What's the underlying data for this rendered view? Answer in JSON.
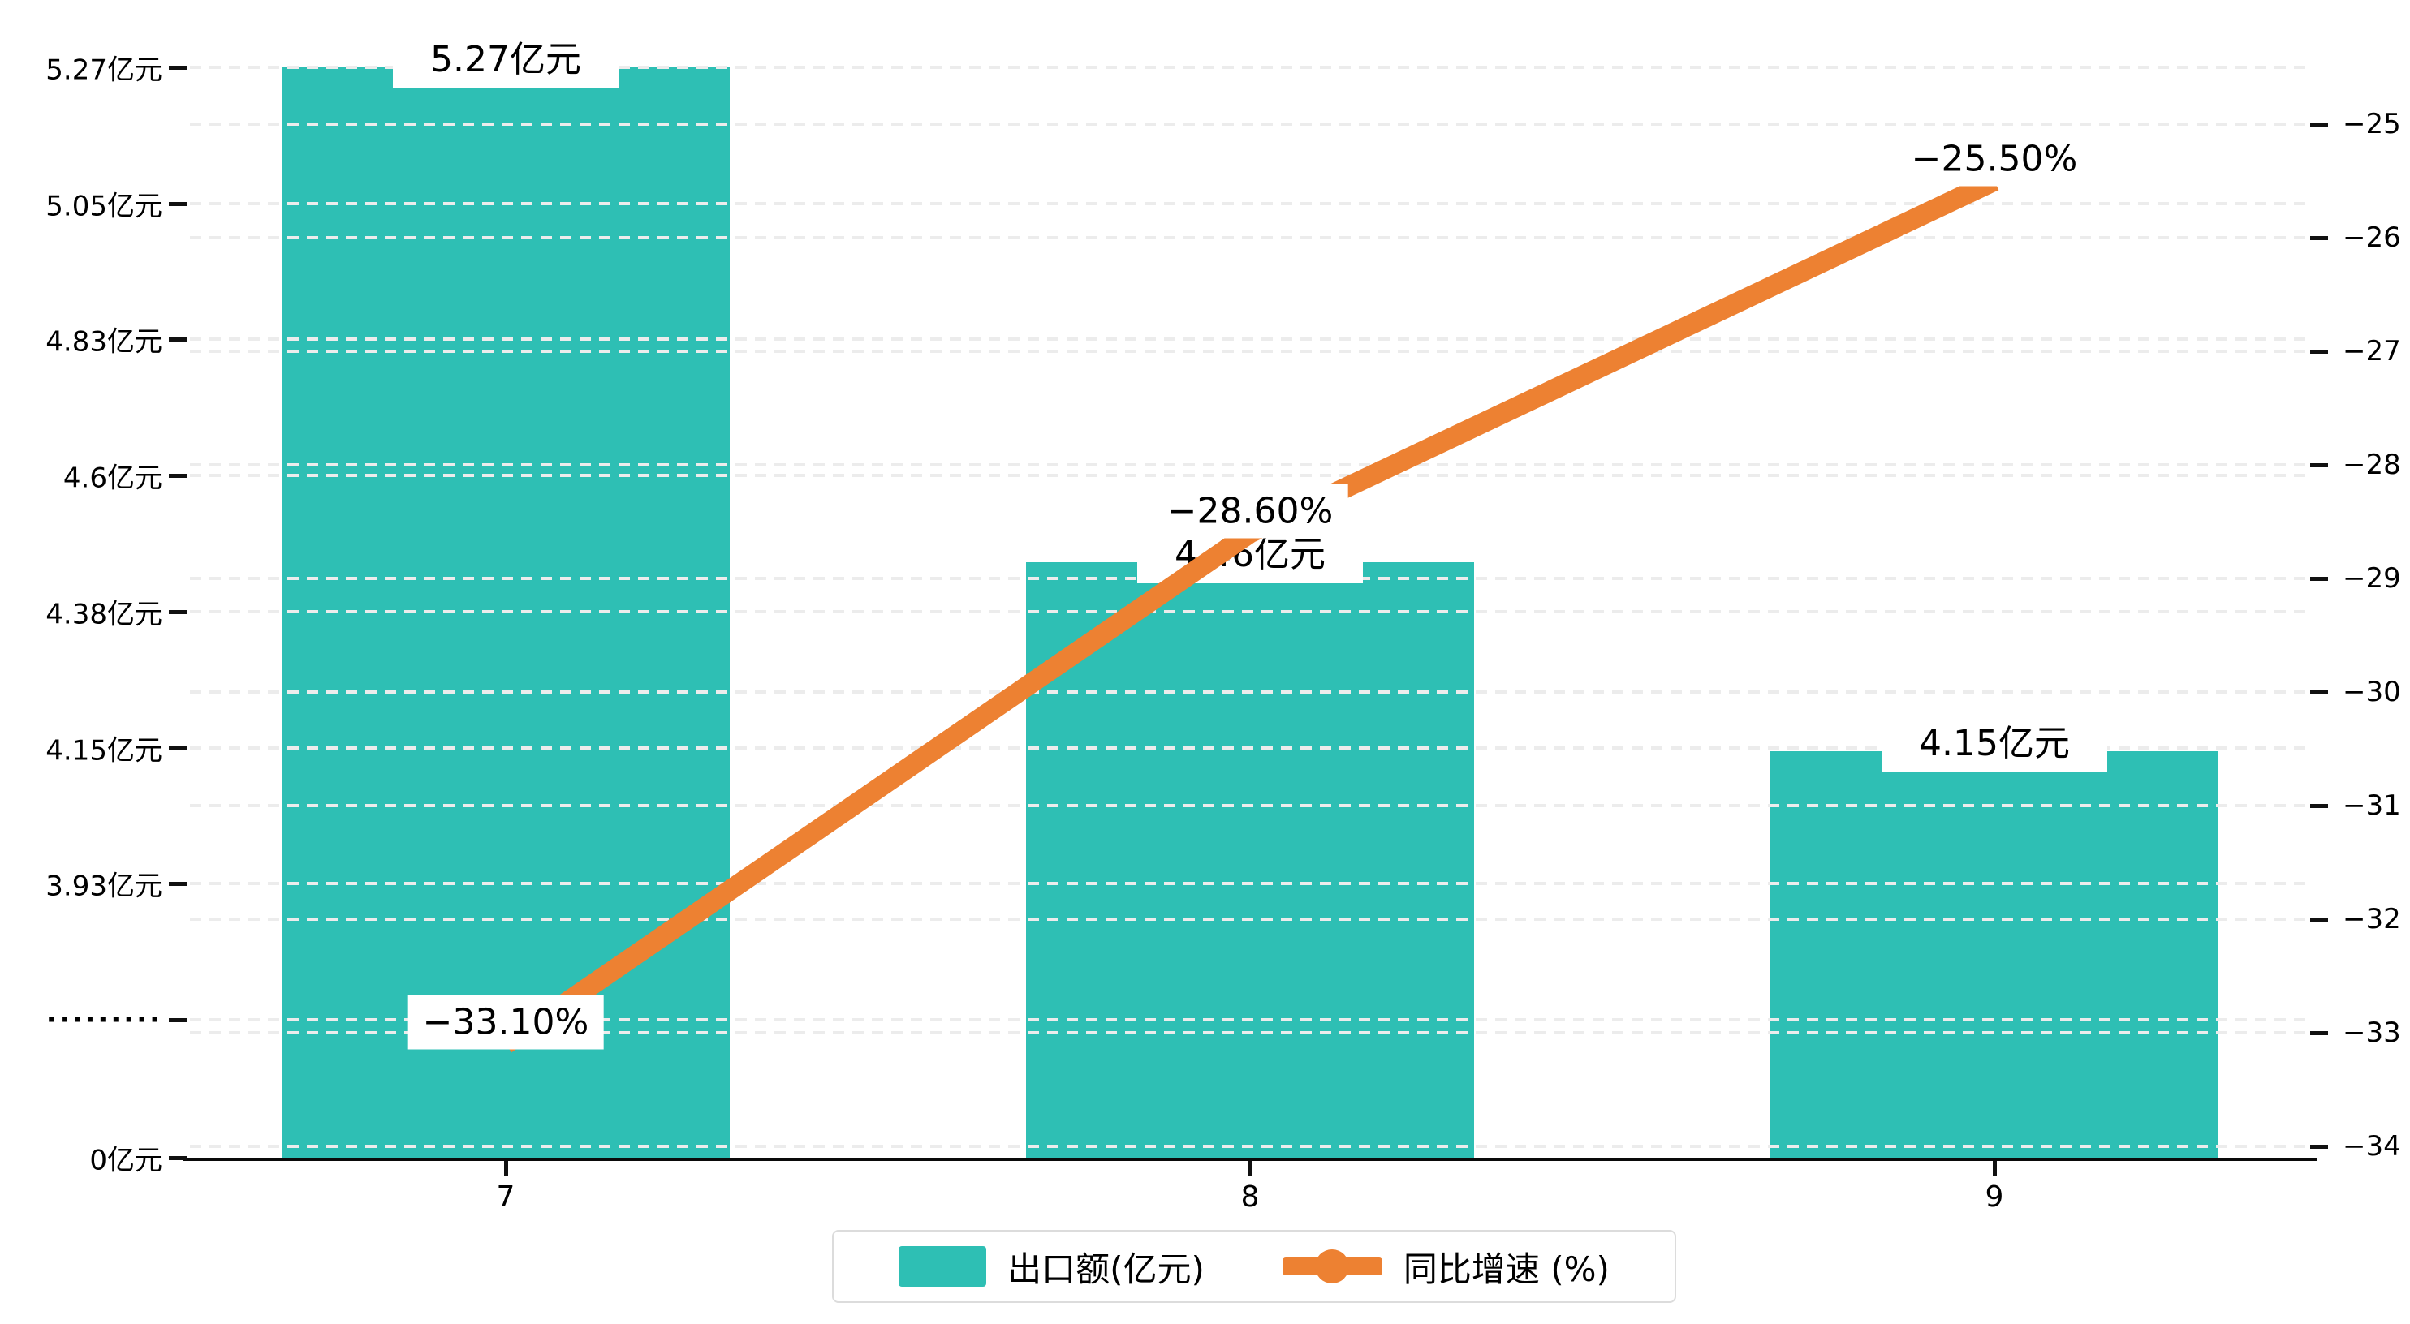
{
  "chart_data": {
    "type": "combo-bar-line",
    "categories": [
      "7",
      "8",
      "9"
    ],
    "series": [
      {
        "name": "出口额(亿元)",
        "type": "bar",
        "axis": "left",
        "color": "#2EBFB4",
        "values": [
          5.27,
          4.46,
          4.15
        ],
        "value_labels": [
          "5.27亿元",
          "4.46亿元",
          "4.15亿元"
        ]
      },
      {
        "name": "同比增速 (%)",
        "type": "line",
        "axis": "right",
        "color": "#ED8132",
        "values": [
          -33.1,
          -28.6,
          -25.5
        ],
        "value_labels": [
          "−33.10%",
          "−28.60%",
          "−25.50%"
        ]
      }
    ],
    "left_axis": {
      "tick_labels": [
        "5.27亿元",
        "5.05亿元",
        "4.83亿元",
        "4.6亿元",
        "4.38亿元",
        "4.15亿元",
        "3.93亿元",
        "·········",
        "0亿元"
      ],
      "linear_top_value": 5.27,
      "linear_bottom_value": 3.71,
      "axis_break": true
    },
    "right_axis": {
      "tick_labels": [
        "−25",
        "−26",
        "−27",
        "−28",
        "−29",
        "−30",
        "−31",
        "−32",
        "−33",
        "−34"
      ],
      "max": -25,
      "min": -34
    },
    "legend": [
      {
        "label": "出口额(亿元)",
        "marker": "bar-swatch"
      },
      {
        "label": "同比增速 (%)",
        "marker": "line-dot"
      }
    ],
    "grid": "horizontal-dashed"
  },
  "colors": {
    "bar": "#2EBFB4",
    "line": "#ED8132",
    "grid": "#ececec",
    "axis": "#0a0a0a",
    "text": "#000000",
    "label_bg": "#ffffff",
    "legend_border": "#dcdcdc",
    "background": "#ffffff"
  }
}
